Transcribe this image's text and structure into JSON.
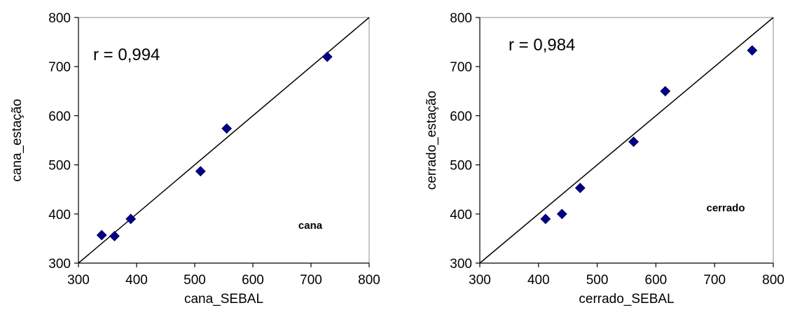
{
  "chart_data": [
    {
      "type": "scatter",
      "xlabel": "cana_SEBAL",
      "ylabel": "cana_estação",
      "xlim": [
        300,
        800
      ],
      "ylim": [
        300,
        800
      ],
      "xticks": [
        "300",
        "400",
        "500",
        "600",
        "700",
        "800"
      ],
      "yticks": [
        "300",
        "400",
        "500",
        "600",
        "700",
        "800"
      ],
      "annotation": "r = 0,994",
      "tag": "cana",
      "identity_line": true,
      "marker_color": "#00008B",
      "points": [
        {
          "x": 340,
          "y": 357
        },
        {
          "x": 362,
          "y": 355
        },
        {
          "x": 390,
          "y": 390
        },
        {
          "x": 510,
          "y": 487
        },
        {
          "x": 555,
          "y": 574
        },
        {
          "x": 728,
          "y": 720
        }
      ]
    },
    {
      "type": "scatter",
      "xlabel": "cerrado_SEBAL",
      "ylabel": "cerrado_estação",
      "xlim": [
        300,
        800
      ],
      "ylim": [
        300,
        800
      ],
      "xticks": [
        "300",
        "400",
        "500",
        "600",
        "700",
        "800"
      ],
      "yticks": [
        "300",
        "400",
        "500",
        "600",
        "700",
        "800"
      ],
      "annotation": "r = 0,984",
      "tag": "cerrado",
      "identity_line": true,
      "marker_color": "#00008B",
      "points": [
        {
          "x": 412,
          "y": 390
        },
        {
          "x": 440,
          "y": 400
        },
        {
          "x": 471,
          "y": 453
        },
        {
          "x": 562,
          "y": 547
        },
        {
          "x": 616,
          "y": 650
        },
        {
          "x": 764,
          "y": 733
        }
      ]
    }
  ]
}
